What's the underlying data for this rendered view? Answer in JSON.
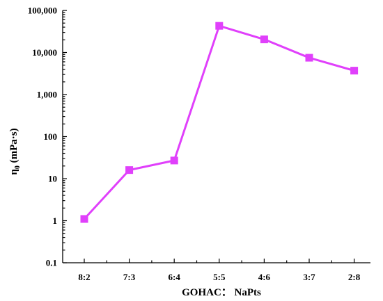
{
  "chart_data": {
    "type": "line",
    "title": "",
    "xlabel": "GOHAC： NaPts",
    "ylabel_main": "η",
    "ylabel_sub": "0",
    "ylabel_rest": " (mPa·s)",
    "categories": [
      "8:2",
      "7:3",
      "6:4",
      "5:5",
      "4:6",
      "3:7",
      "2:8"
    ],
    "series": [
      {
        "values": [
          1.1,
          16,
          27,
          43000,
          20500,
          7500,
          3700
        ],
        "color": "#e040fb"
      }
    ],
    "yscale": "log",
    "ylim": [
      0.1,
      100000
    ],
    "yticks": [
      0.1,
      1,
      10,
      100,
      1000,
      10000,
      100000
    ],
    "ytick_labels": [
      "0.1",
      "1",
      "10",
      "100",
      "1,000",
      "10,000",
      "100,000"
    ],
    "grid": false,
    "legend": "none",
    "marker": "square"
  }
}
